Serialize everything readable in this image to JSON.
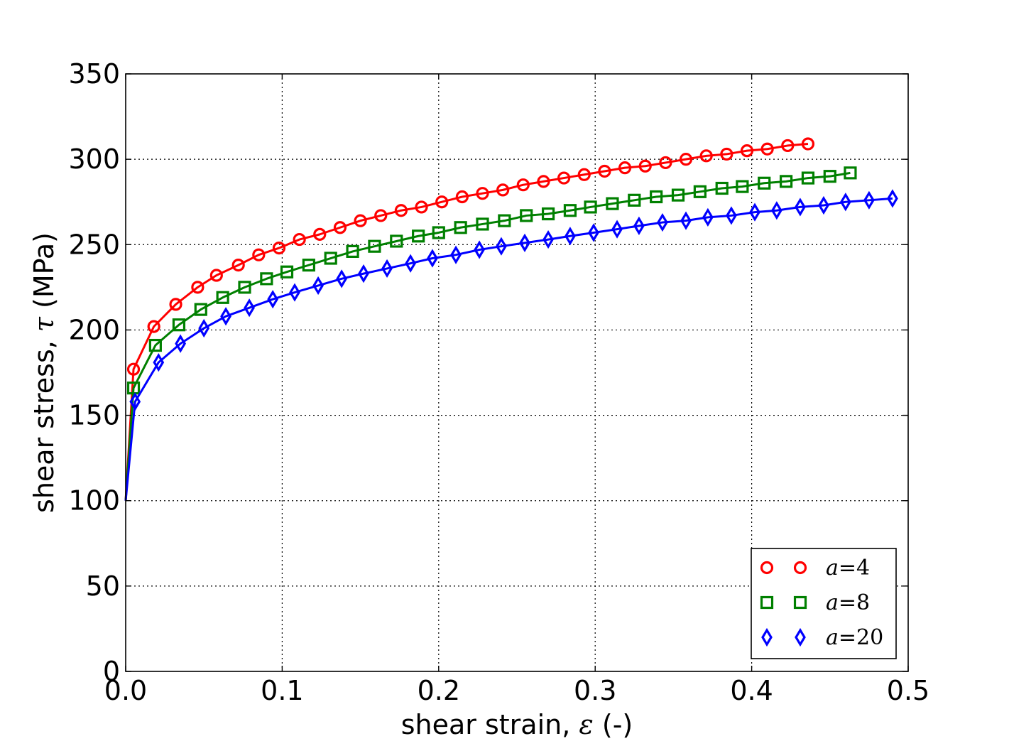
{
  "chart_data": {
    "type": "line",
    "xlabel_prefix": "shear strain, ",
    "xlabel_symbol": "ε",
    "xlabel_suffix": " (-)",
    "ylabel_prefix": "shear stress, ",
    "ylabel_symbol": "τ",
    "ylabel_suffix": " (MPa)",
    "xlim": [
      0.0,
      0.5
    ],
    "ylim": [
      0,
      350
    ],
    "x_ticks": [
      0.0,
      0.1,
      0.2,
      0.3,
      0.4,
      0.5
    ],
    "x_tick_labels": [
      "0.0",
      "0.1",
      "0.2",
      "0.3",
      "0.4",
      "0.5"
    ],
    "y_ticks": [
      0,
      50,
      100,
      150,
      200,
      250,
      300,
      350
    ],
    "y_tick_labels": [
      "0",
      "50",
      "100",
      "150",
      "200",
      "250",
      "300",
      "350"
    ],
    "grid": true,
    "grid_style": "dotted",
    "legend_position": "lower-right",
    "series": [
      {
        "name": "a=4",
        "legend_var": "a",
        "legend_eq": "=",
        "legend_num": "4",
        "color": "#ff0000",
        "marker": "circle",
        "x": [
          0.0,
          0.005,
          0.018,
          0.032,
          0.046,
          0.058,
          0.072,
          0.085,
          0.098,
          0.111,
          0.124,
          0.137,
          0.15,
          0.163,
          0.176,
          0.189,
          0.202,
          0.215,
          0.228,
          0.241,
          0.254,
          0.267,
          0.28,
          0.293,
          0.306,
          0.319,
          0.332,
          0.345,
          0.358,
          0.371,
          0.384,
          0.397,
          0.41,
          0.423,
          0.436
        ],
        "y": [
          100,
          177,
          202,
          215,
          225,
          232,
          238,
          244,
          248,
          253,
          256,
          260,
          264,
          267,
          270,
          272,
          275,
          278,
          280,
          282,
          285,
          287,
          289,
          291,
          293,
          295,
          296,
          298,
          300,
          302,
          303,
          305,
          306,
          308,
          309
        ]
      },
      {
        "name": "a=8",
        "legend_var": "a",
        "legend_eq": "=",
        "legend_num": "8",
        "color": "#008000",
        "marker": "square",
        "x": [
          0.0,
          0.005,
          0.019,
          0.034,
          0.048,
          0.062,
          0.076,
          0.09,
          0.103,
          0.117,
          0.131,
          0.145,
          0.159,
          0.173,
          0.187,
          0.2,
          0.214,
          0.228,
          0.242,
          0.256,
          0.27,
          0.284,
          0.297,
          0.311,
          0.325,
          0.339,
          0.353,
          0.367,
          0.381,
          0.394,
          0.408,
          0.422,
          0.436,
          0.45,
          0.463
        ],
        "y": [
          100,
          166,
          191,
          203,
          212,
          219,
          225,
          230,
          234,
          238,
          242,
          246,
          249,
          252,
          255,
          257,
          260,
          262,
          264,
          267,
          268,
          270,
          272,
          274,
          276,
          278,
          279,
          281,
          283,
          284,
          286,
          287,
          289,
          290,
          292
        ]
      },
      {
        "name": "a=20",
        "legend_var": "a",
        "legend_eq": "=",
        "legend_num": "20",
        "color": "#0000ff",
        "marker": "diamond",
        "x": [
          0.0,
          0.006,
          0.021,
          0.035,
          0.05,
          0.064,
          0.079,
          0.094,
          0.108,
          0.123,
          0.138,
          0.152,
          0.167,
          0.182,
          0.196,
          0.211,
          0.226,
          0.24,
          0.255,
          0.27,
          0.284,
          0.299,
          0.314,
          0.328,
          0.343,
          0.358,
          0.372,
          0.387,
          0.402,
          0.416,
          0.431,
          0.446,
          0.46,
          0.475,
          0.49
        ],
        "y": [
          100,
          158,
          181,
          192,
          201,
          208,
          213,
          218,
          222,
          226,
          230,
          233,
          236,
          239,
          242,
          244,
          247,
          249,
          251,
          253,
          255,
          257,
          259,
          261,
          263,
          264,
          266,
          267,
          269,
          270,
          272,
          273,
          275,
          276,
          277
        ]
      }
    ]
  }
}
